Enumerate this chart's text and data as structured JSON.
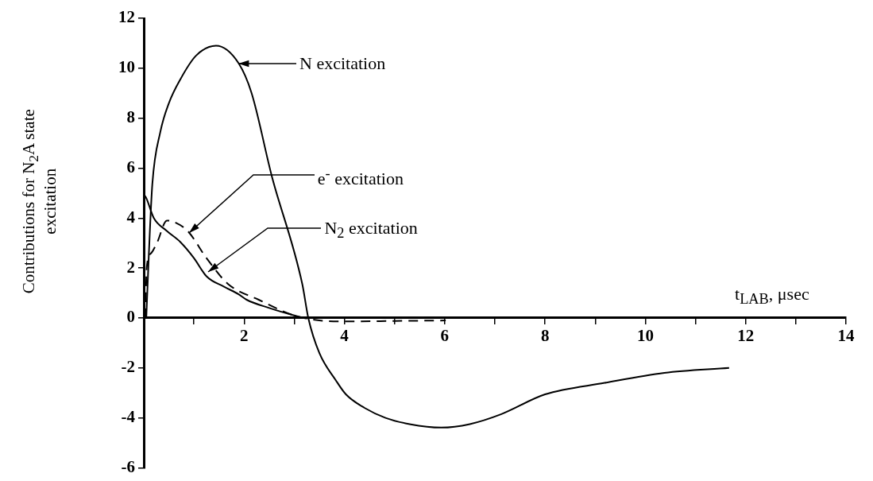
{
  "chart_data": {
    "type": "line",
    "xlabel": "t$_{LAB}$, μsec",
    "ylabel": "Contributions for  N$_{2}$A  state excitation",
    "xlim": [
      0,
      14
    ],
    "ylim": [
      -6,
      12
    ],
    "xticks": [
      {
        "value": 1,
        "label": null
      },
      2,
      {
        "value": 3,
        "label": null
      },
      4,
      {
        "value": 5,
        "label": null
      },
      6,
      {
        "value": 7,
        "label": null
      },
      8,
      {
        "value": 9,
        "label": null
      },
      10,
      {
        "value": 11,
        "label": null
      },
      12,
      {
        "value": 13,
        "label": null
      },
      14
    ],
    "yticks": [
      -6,
      -4,
      -2,
      0,
      2,
      4,
      6,
      8,
      10,
      12
    ],
    "grid": false,
    "legend": false,
    "marker": "none",
    "series": [
      {
        "color": "#000000",
        "line_style": "solid",
        "x": [
          0.05,
          0.1,
          0.17,
          0.33,
          0.5,
          0.73,
          1.04,
          1.44,
          1.89,
          2.15,
          2.55,
          3.16,
          3.28,
          3.5,
          3.83,
          4.03,
          4.4,
          4.82,
          5.3,
          5.93,
          6.5,
          7.13,
          8.0,
          9.19,
          10.38,
          11.67
        ],
        "values": [
          0,
          2.5,
          5.35,
          7.45,
          8.6,
          9.56,
          10.5,
          10.9,
          10.2,
          9.0,
          5.7,
          1.36,
          0,
          -1.4,
          -2.5,
          -3.06,
          -3.6,
          -4.0,
          -4.25,
          -4.39,
          -4.25,
          -3.85,
          -3.06,
          -2.6,
          -2.2,
          -2.0
        ]
      },
      {
        "color": "#000000",
        "line_style": "solid",
        "x": [
          0,
          0.05,
          0.2,
          0.45,
          0.73,
          1.0,
          1.25,
          1.6,
          1.89,
          2.05,
          2.5,
          3.0,
          3.2
        ],
        "values": [
          4.95,
          4.8,
          4.0,
          3.5,
          3.04,
          2.4,
          1.67,
          1.25,
          0.95,
          0.73,
          0.4,
          0.1,
          0
        ]
      },
      {
        "color": "#000000",
        "line_style": "dashed",
        "x": [
          0.03,
          0.06,
          0.15,
          0.27,
          0.46,
          0.6,
          0.88,
          1.25,
          1.68,
          2.29,
          3.0,
          3.5,
          4.03,
          5.0,
          6.02
        ],
        "values": [
          0,
          2.05,
          2.6,
          3.04,
          3.9,
          3.85,
          3.47,
          2.4,
          1.36,
          0.73,
          0.1,
          -0.1,
          -0.14,
          -0.12,
          -0.1
        ]
      }
    ],
    "annotations": [
      "N excitation",
      {
        "text": "e$^{-}$ excitation",
        "x": 0.9,
        "y": 3.4
      },
      {
        "text": "N$_{2}$ excitation",
        "x": 1.29,
        "y": 1.83
      }
    ]
  }
}
